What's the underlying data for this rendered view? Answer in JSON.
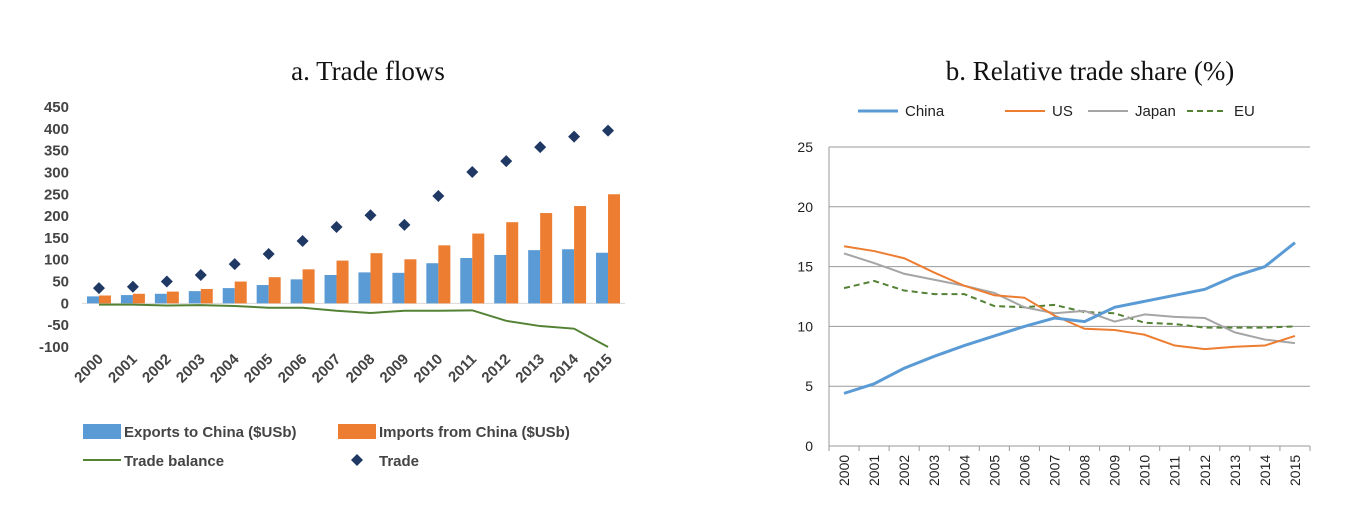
{
  "chart_data": [
    {
      "type": "bar",
      "title": "a. Trade flows",
      "categories": [
        "2000",
        "2001",
        "2002",
        "2003",
        "2004",
        "2005",
        "2006",
        "2007",
        "2008",
        "2009",
        "2010",
        "2011",
        "2012",
        "2013",
        "2014",
        "2015"
      ],
      "ylim": [
        -100,
        450
      ],
      "yticks": [
        -100,
        -50,
        0,
        50,
        100,
        150,
        200,
        250,
        300,
        350,
        400,
        450
      ],
      "grid": false,
      "legend_position": "bottom",
      "series": [
        {
          "name": "Exports to China ($USb)",
          "kind": "bar",
          "color": "#5b9bd5",
          "values": [
            16,
            19,
            22,
            28,
            35,
            42,
            55,
            65,
            71,
            70,
            92,
            104,
            111,
            122,
            124,
            116
          ]
        },
        {
          "name": "Imports from China ($USb)",
          "kind": "bar",
          "color": "#ed7d31",
          "values": [
            18,
            22,
            27,
            33,
            50,
            60,
            78,
            98,
            115,
            101,
            133,
            160,
            186,
            207,
            223,
            250
          ]
        },
        {
          "name": "Trade balance",
          "kind": "line",
          "color": "#548235",
          "values": [
            -3,
            -3,
            -5,
            -4,
            -6,
            -10,
            -10,
            -17,
            -22,
            -17,
            -17,
            -16,
            -40,
            -52,
            -58,
            -100
          ]
        },
        {
          "name": "Trade",
          "kind": "scatter",
          "color": "#1f3864",
          "values": [
            35,
            38,
            50,
            65,
            90,
            113,
            143,
            175,
            202,
            180,
            246,
            301,
            326,
            358,
            382,
            396
          ]
        }
      ]
    },
    {
      "type": "line",
      "title": "b. Relative trade share (%)",
      "x": [
        "2000",
        "2001",
        "2002",
        "2003",
        "2004",
        "2005",
        "2006",
        "2007",
        "2008",
        "2009",
        "2010",
        "2011",
        "2012",
        "2013",
        "2014",
        "2015"
      ],
      "ylim": [
        0,
        25
      ],
      "yticks": [
        0,
        5,
        10,
        15,
        20,
        25
      ],
      "grid": true,
      "legend_position": "top",
      "series": [
        {
          "name": "China",
          "color": "#5b9bd5",
          "dash": false,
          "values": [
            4.4,
            5.2,
            6.5,
            7.5,
            8.4,
            9.2,
            10.0,
            10.7,
            10.4,
            11.6,
            12.1,
            12.6,
            13.1,
            14.2,
            15.0,
            17.0
          ]
        },
        {
          "name": "US",
          "color": "#ed7d31",
          "dash": false,
          "values": [
            16.7,
            16.3,
            15.7,
            14.5,
            13.4,
            12.6,
            12.4,
            10.9,
            9.8,
            9.7,
            9.3,
            8.4,
            8.1,
            8.3,
            8.4,
            9.2
          ]
        },
        {
          "name": "Japan",
          "color": "#a5a5a5",
          "dash": false,
          "values": [
            16.1,
            15.3,
            14.4,
            13.9,
            13.4,
            12.8,
            11.6,
            11.1,
            11.3,
            10.4,
            11.0,
            10.8,
            10.7,
            9.5,
            8.9,
            8.6
          ]
        },
        {
          "name": "EU",
          "color": "#548235",
          "dash": true,
          "values": [
            13.2,
            13.8,
            13.0,
            12.7,
            12.7,
            11.7,
            11.6,
            11.8,
            11.2,
            11.1,
            10.3,
            10.2,
            9.9,
            9.9,
            9.9,
            10.0
          ]
        }
      ]
    }
  ]
}
